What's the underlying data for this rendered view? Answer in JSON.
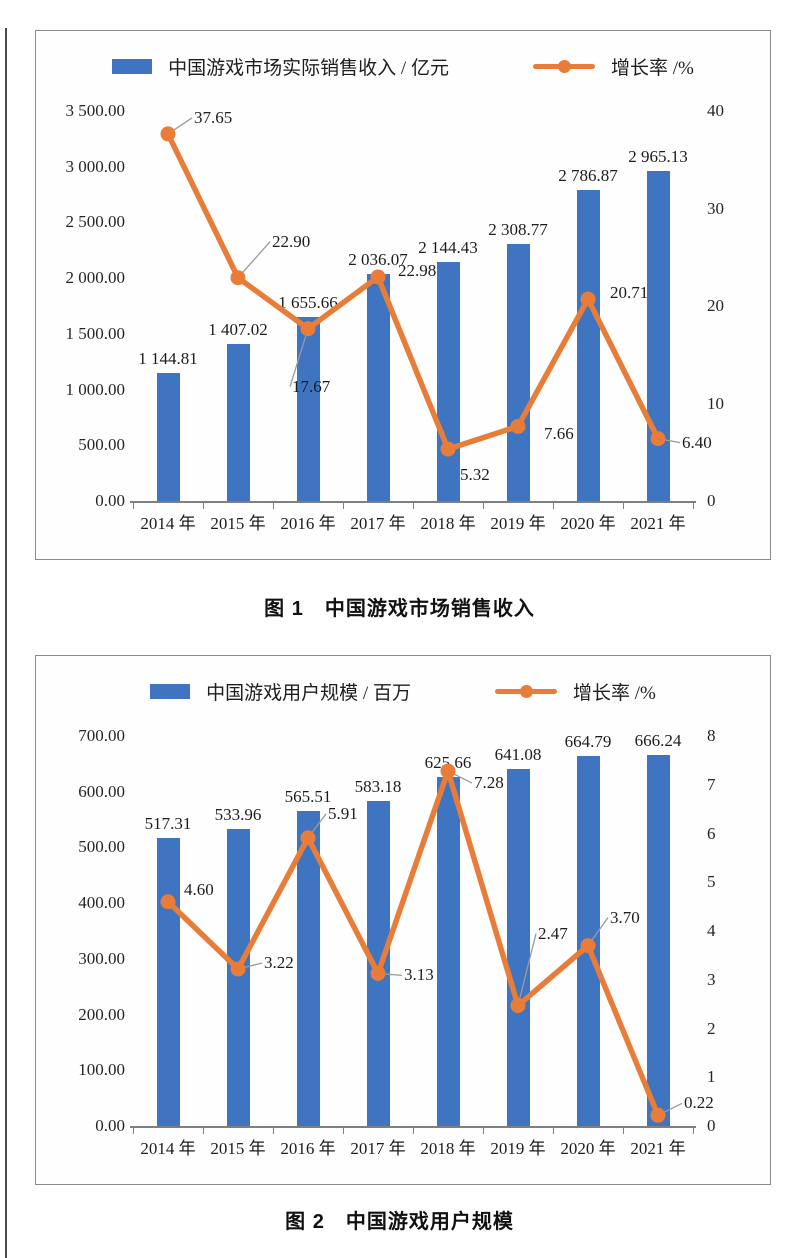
{
  "colors": {
    "bar": "#3E74C0",
    "line": "#E87D3A",
    "axis": "#7F7F7F",
    "leader": "#9A9A9A",
    "text": "#1C1C1C"
  },
  "captions": {
    "figure1": "图 1　中国游戏市场销售收入",
    "figure2": "图 2　中国游戏用户规模"
  },
  "chart_data": [
    {
      "type": "bar",
      "title": "图 1 中国游戏市场销售收入",
      "legend": {
        "bar": "中国游戏市场实际销售收入 / 亿元",
        "line": "增长率 /%"
      },
      "categories": [
        "2014 年",
        "2015 年",
        "2016 年",
        "2017 年",
        "2018 年",
        "2019 年",
        "2020 年",
        "2021 年"
      ],
      "series": [
        {
          "name": "中国游戏市场实际销售收入 / 亿元",
          "type": "bar",
          "axis": "left",
          "values": [
            1144.81,
            1407.02,
            1655.66,
            2036.07,
            2144.43,
            2308.77,
            2786.87,
            2965.13
          ],
          "labels": [
            "1 144.81",
            "1 407.02",
            "1 655.66",
            "2 036.07",
            "2 144.43",
            "2 308.77",
            "2 786.87",
            "2 965.13"
          ]
        },
        {
          "name": "增长率 /%",
          "type": "line",
          "axis": "right",
          "values": [
            37.65,
            22.9,
            17.67,
            22.98,
            5.32,
            7.66,
            20.71,
            6.4
          ],
          "labels": [
            "37.65",
            "22.90",
            "17.67",
            "22.98",
            "5.32",
            "7.66",
            "20.71",
            "6.40"
          ]
        }
      ],
      "left_axis": {
        "min": 0,
        "max": 3500,
        "ticks": [
          "3 500.00",
          "3 000.00",
          "2 500.00",
          "2 000.00",
          "1 500.00",
          "1 000.00",
          "500.00",
          "0.00"
        ]
      },
      "right_axis": {
        "min": 0,
        "max": 40,
        "ticks": [
          "40",
          "30",
          "20",
          "10",
          "0"
        ]
      },
      "grid": false,
      "legend_position": "top",
      "label_offsets": [
        [
          26,
          -16,
          true
        ],
        [
          34,
          -36,
          true
        ],
        [
          -16,
          58,
          true
        ],
        [
          20,
          -6,
          false
        ],
        [
          12,
          26,
          false
        ],
        [
          26,
          8,
          false
        ],
        [
          22,
          -6,
          false
        ],
        [
          24,
          4,
          true
        ]
      ]
    },
    {
      "type": "bar",
      "title": "图 2 中国游戏用户规模",
      "legend": {
        "bar": "中国游戏用户规模 / 百万",
        "line": "增长率 /%"
      },
      "categories": [
        "2014 年",
        "2015 年",
        "2016 年",
        "2017 年",
        "2018 年",
        "2019 年",
        "2020 年",
        "2021 年"
      ],
      "series": [
        {
          "name": "中国游戏用户规模 / 百万",
          "type": "bar",
          "axis": "left",
          "values": [
            517.31,
            533.96,
            565.51,
            583.18,
            625.66,
            641.08,
            664.79,
            666.24
          ],
          "labels": [
            "517.31",
            "533.96",
            "565.51",
            "583.18",
            "625.66",
            "641.08",
            "664.79",
            "666.24"
          ]
        },
        {
          "name": "增长率 /%",
          "type": "line",
          "axis": "right",
          "values": [
            4.6,
            3.22,
            5.91,
            3.13,
            7.28,
            2.47,
            3.7,
            0.22
          ],
          "labels": [
            "4.60",
            "3.22",
            "5.91",
            "3.13",
            "7.28",
            "2.47",
            "3.70",
            "0.22"
          ]
        }
      ],
      "left_axis": {
        "min": 0,
        "max": 700,
        "ticks": [
          "700.00",
          "600.00",
          "500.00",
          "400.00",
          "300.00",
          "200.00",
          "100.00",
          "0.00"
        ]
      },
      "right_axis": {
        "min": 0,
        "max": 8,
        "ticks": [
          "8",
          "7",
          "6",
          "5",
          "4",
          "3",
          "2",
          "1",
          "0"
        ]
      },
      "grid": false,
      "legend_position": "top",
      "label_offsets": [
        [
          16,
          -12,
          false
        ],
        [
          26,
          -6,
          true
        ],
        [
          20,
          -24,
          true
        ],
        [
          26,
          2,
          true
        ],
        [
          26,
          12,
          true
        ],
        [
          20,
          -72,
          true
        ],
        [
          22,
          -28,
          true
        ],
        [
          26,
          -12,
          true
        ]
      ]
    }
  ]
}
